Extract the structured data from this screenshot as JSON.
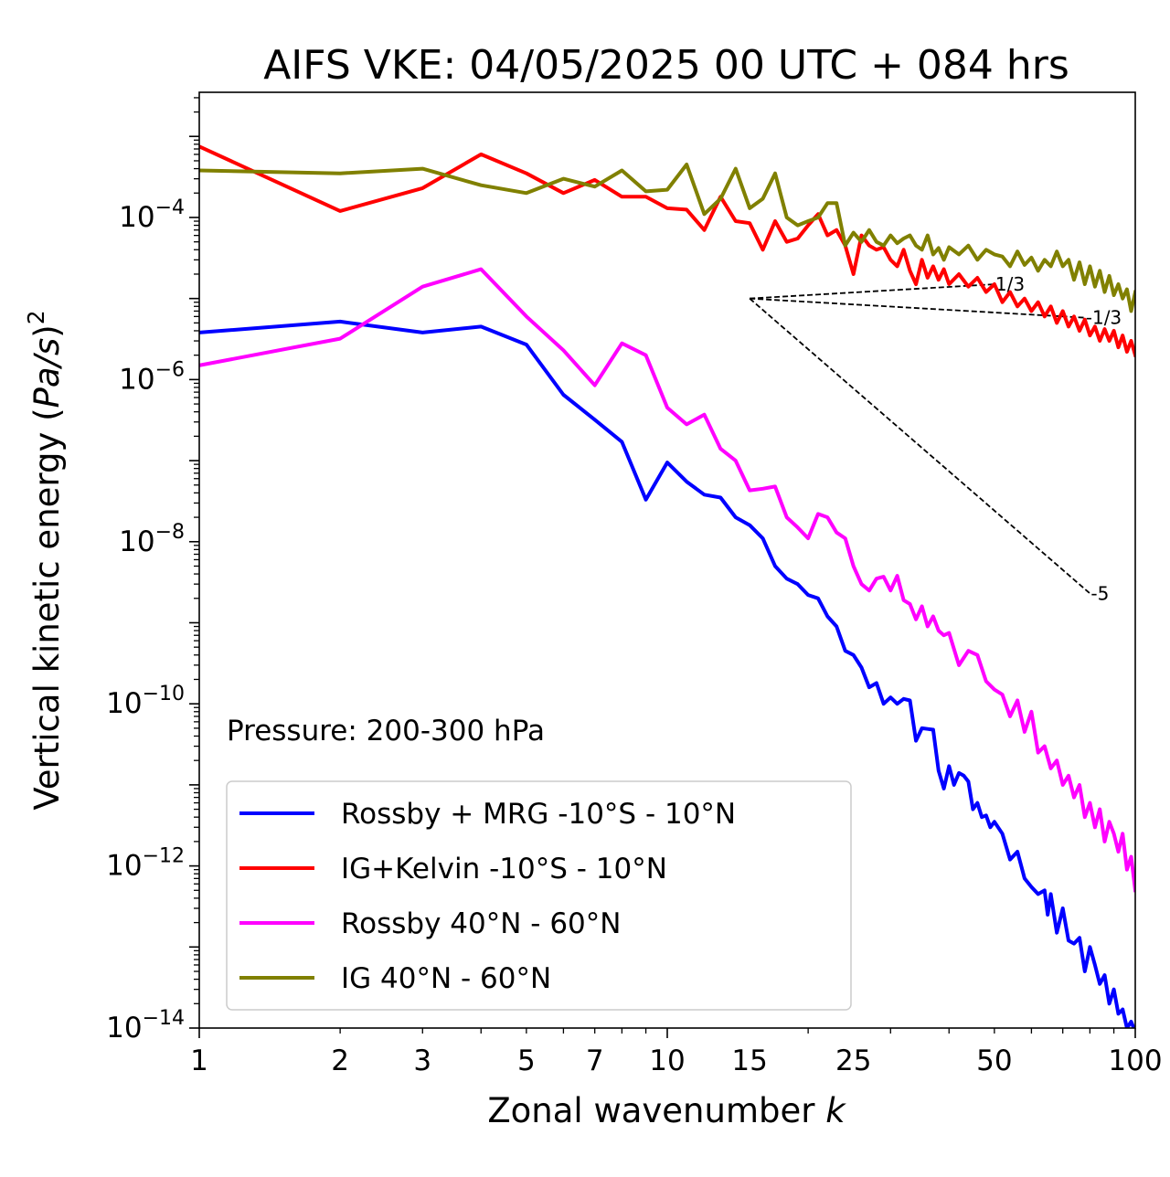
{
  "chart_data": {
    "type": "line",
    "title": "AIFS VKE: 04/05/2025 00 UTC + 084 hrs",
    "xlabel": "Zonal wavenumber k",
    "ylabel": "Vertical kinetic energy (Pa/s)^2",
    "x_scale": "log",
    "y_scale": "log",
    "xlim": [
      1,
      100
    ],
    "ylim": [
      1e-14,
      0.0035
    ],
    "x_ticks": [
      1,
      2,
      3,
      5,
      7,
      10,
      15,
      25,
      50,
      100
    ],
    "x_tick_labels": [
      "1",
      "2",
      "3",
      "5",
      "7",
      "10",
      "15",
      "25",
      "50",
      "100"
    ],
    "y_ticks": [
      {
        "value": 0.0001,
        "base": "10",
        "exp": "−4"
      },
      {
        "value": 1e-06,
        "base": "10",
        "exp": "−6"
      },
      {
        "value": 1e-08,
        "base": "10",
        "exp": "−8"
      },
      {
        "value": 1e-10,
        "base": "10",
        "exp": "−10"
      },
      {
        "value": 1e-12,
        "base": "10",
        "exp": "−12"
      },
      {
        "value": 1e-14,
        "base": "10",
        "exp": "−14"
      }
    ],
    "grid": false,
    "annotation": "Pressure: 200-300 hPa",
    "legend_position": "lower-left",
    "series": [
      {
        "name": "Rossby + MRG -10°S - 10°N",
        "color": "#0000ff",
        "points": [
          [
            1,
            3.8e-06
          ],
          [
            2,
            5.2e-06
          ],
          [
            3,
            3.8e-06
          ],
          [
            4,
            4.5e-06
          ],
          [
            5,
            2.7e-06
          ],
          [
            6,
            6.5e-07
          ],
          [
            7,
            3.2e-07
          ],
          [
            8,
            1.7e-07
          ],
          [
            9,
            3.3e-08
          ],
          [
            10,
            9.5e-08
          ],
          [
            11,
            5.5e-08
          ],
          [
            12,
            3.8e-08
          ],
          [
            13,
            3.5e-08
          ],
          [
            14,
            2e-08
          ],
          [
            15,
            1.6e-08
          ],
          [
            16,
            1.1e-08
          ],
          [
            17,
            5e-09
          ],
          [
            18,
            3.5e-09
          ],
          [
            19,
            3e-09
          ],
          [
            20,
            2.2e-09
          ],
          [
            21,
            2e-09
          ],
          [
            22,
            1.2e-09
          ],
          [
            23,
            9e-10
          ],
          [
            24,
            4.5e-10
          ],
          [
            25,
            4e-10
          ],
          [
            26,
            2.8e-10
          ],
          [
            27,
            1.6e-10
          ],
          [
            28,
            1.8e-10
          ],
          [
            29,
            1e-10
          ],
          [
            30,
            1.2e-10
          ],
          [
            31,
            1e-10
          ],
          [
            32,
            1.15e-10
          ],
          [
            33,
            1.1e-10
          ],
          [
            34,
            3.5e-11
          ],
          [
            35,
            5e-11
          ],
          [
            36,
            4.9e-11
          ],
          [
            37,
            4.8e-11
          ],
          [
            38,
            1.5e-11
          ],
          [
            39,
            9e-12
          ],
          [
            40,
            1.7e-11
          ],
          [
            41,
            1e-11
          ],
          [
            42,
            1.4e-11
          ],
          [
            43,
            1.3e-11
          ],
          [
            44,
            1.1e-11
          ],
          [
            45,
            5e-12
          ],
          [
            46,
            6e-12
          ],
          [
            47,
            4e-12
          ],
          [
            48,
            4.2e-12
          ],
          [
            49,
            3e-12
          ],
          [
            50,
            3.5e-12
          ],
          [
            52,
            2.5e-12
          ],
          [
            54,
            1.2e-12
          ],
          [
            56,
            1.5e-12
          ],
          [
            58,
            7e-13
          ],
          [
            60,
            5.5e-13
          ],
          [
            62,
            4.5e-13
          ],
          [
            64,
            5e-13
          ],
          [
            65,
            2.5e-13
          ],
          [
            66,
            4.5e-13
          ],
          [
            68,
            1.5e-13
          ],
          [
            70,
            3e-13
          ],
          [
            72,
            1.2e-13
          ],
          [
            74,
            1.1e-13
          ],
          [
            76,
            1.3e-13
          ],
          [
            78,
            5e-14
          ],
          [
            80,
            1e-13
          ],
          [
            82,
            6e-14
          ],
          [
            84,
            3.5e-14
          ],
          [
            86,
            4.5e-14
          ],
          [
            88,
            2e-14
          ],
          [
            90,
            3e-14
          ],
          [
            92,
            1.5e-14
          ],
          [
            94,
            1.7e-14
          ],
          [
            96,
            1e-14
          ],
          [
            98,
            1.2e-14
          ],
          [
            100,
            9e-15
          ]
        ]
      },
      {
        "name": "IG+Kelvin -10°S - 10°N",
        "color": "#ff0000",
        "points": [
          [
            1,
            0.00075
          ],
          [
            2,
            0.00012
          ],
          [
            3,
            0.00023
          ],
          [
            4,
            0.0006
          ],
          [
            5,
            0.00035
          ],
          [
            6,
            0.0002
          ],
          [
            7,
            0.00029
          ],
          [
            8,
            0.00018
          ],
          [
            9,
            0.00018
          ],
          [
            10,
            0.00013
          ],
          [
            11,
            0.000125
          ],
          [
            12,
            7e-05
          ],
          [
            13,
            0.00018
          ],
          [
            14,
            9e-05
          ],
          [
            15,
            8.5e-05
          ],
          [
            16,
            4e-05
          ],
          [
            17,
            9e-05
          ],
          [
            18,
            5e-05
          ],
          [
            19,
            5.5e-05
          ],
          [
            20,
            8e-05
          ],
          [
            21,
            0.00011
          ],
          [
            22,
            6e-05
          ],
          [
            23,
            7e-05
          ],
          [
            24,
            4.5e-05
          ],
          [
            25,
            2e-05
          ],
          [
            26,
            6e-05
          ],
          [
            27,
            4.5e-05
          ],
          [
            28,
            4e-05
          ],
          [
            29,
            4.3e-05
          ],
          [
            30,
            3e-05
          ],
          [
            31,
            2.5e-05
          ],
          [
            32,
            4e-05
          ],
          [
            33,
            2.2e-05
          ],
          [
            34,
            1.5e-05
          ],
          [
            35,
            3e-05
          ],
          [
            36,
            1.8e-05
          ],
          [
            37,
            2.5e-05
          ],
          [
            38,
            1.7e-05
          ],
          [
            39,
            2.3e-05
          ],
          [
            40,
            1.5e-05
          ],
          [
            42,
            2e-05
          ],
          [
            44,
            1.4e-05
          ],
          [
            46,
            1.8e-05
          ],
          [
            48,
            1.2e-05
          ],
          [
            50,
            1.5e-05
          ],
          [
            52,
            9e-06
          ],
          [
            54,
            1.2e-05
          ],
          [
            56,
            8e-06
          ],
          [
            58,
            1e-05
          ],
          [
            60,
            7e-06
          ],
          [
            62,
            9e-06
          ],
          [
            64,
            6e-06
          ],
          [
            66,
            8e-06
          ],
          [
            68,
            5e-06
          ],
          [
            70,
            7e-06
          ],
          [
            72,
            4.5e-06
          ],
          [
            74,
            6e-06
          ],
          [
            76,
            4e-06
          ],
          [
            78,
            5.5e-06
          ],
          [
            80,
            3.5e-06
          ],
          [
            82,
            4.5e-06
          ],
          [
            84,
            3e-06
          ],
          [
            86,
            4.2e-06
          ],
          [
            88,
            3e-06
          ],
          [
            90,
            4e-06
          ],
          [
            92,
            2.5e-06
          ],
          [
            94,
            3.5e-06
          ],
          [
            96,
            2.2e-06
          ],
          [
            98,
            3e-06
          ],
          [
            100,
            2e-06
          ]
        ]
      },
      {
        "name": "Rossby 40°N - 60°N",
        "color": "#ff00ff",
        "points": [
          [
            1,
            1.5e-06
          ],
          [
            2,
            3.2e-06
          ],
          [
            3,
            1.4e-05
          ],
          [
            4,
            2.3e-05
          ],
          [
            5,
            6e-06
          ],
          [
            6,
            2.3e-06
          ],
          [
            7,
            8.5e-07
          ],
          [
            8,
            2.8e-06
          ],
          [
            9,
            2e-06
          ],
          [
            10,
            4.5e-07
          ],
          [
            11,
            2.8e-07
          ],
          [
            12,
            3.7e-07
          ],
          [
            13,
            1.4e-07
          ],
          [
            14,
            1e-07
          ],
          [
            15,
            4.3e-08
          ],
          [
            16,
            4.5e-08
          ],
          [
            17,
            4.8e-08
          ],
          [
            18,
            2e-08
          ],
          [
            19,
            1.5e-08
          ],
          [
            20,
            1.1e-08
          ],
          [
            21,
            2.2e-08
          ],
          [
            22,
            2e-08
          ],
          [
            23,
            1.3e-08
          ],
          [
            24,
            1.1e-08
          ],
          [
            25,
            5e-09
          ],
          [
            26,
            3e-09
          ],
          [
            27,
            2.5e-09
          ],
          [
            28,
            3.5e-09
          ],
          [
            29,
            3.7e-09
          ],
          [
            30,
            2.5e-09
          ],
          [
            31,
            3.8e-09
          ],
          [
            32,
            1.9e-09
          ],
          [
            33,
            1.7e-09
          ],
          [
            34,
            1.1e-09
          ],
          [
            35,
            1.6e-09
          ],
          [
            36,
            9e-10
          ],
          [
            37,
            1.2e-09
          ],
          [
            38,
            8e-10
          ],
          [
            39,
            7e-10
          ],
          [
            40,
            7.5e-10
          ],
          [
            42,
            3e-10
          ],
          [
            44,
            4.5e-10
          ],
          [
            46,
            4e-10
          ],
          [
            48,
            1.9e-10
          ],
          [
            50,
            1.5e-10
          ],
          [
            52,
            1.3e-10
          ],
          [
            54,
            7e-11
          ],
          [
            56,
            1.1e-10
          ],
          [
            58,
            4.5e-11
          ],
          [
            60,
            8e-11
          ],
          [
            62,
            2.5e-11
          ],
          [
            64,
            3e-11
          ],
          [
            66,
            1.6e-11
          ],
          [
            68,
            2e-11
          ],
          [
            70,
            1e-11
          ],
          [
            72,
            1.3e-11
          ],
          [
            74,
            7e-12
          ],
          [
            76,
            1e-11
          ],
          [
            78,
            4e-12
          ],
          [
            80,
            6e-12
          ],
          [
            82,
            3e-12
          ],
          [
            84,
            5e-12
          ],
          [
            86,
            2e-12
          ],
          [
            88,
            3.5e-12
          ],
          [
            90,
            2.5e-12
          ],
          [
            92,
            1.5e-12
          ],
          [
            94,
            2.5e-12
          ],
          [
            96,
            9e-13
          ],
          [
            98,
            1.3e-12
          ],
          [
            100,
            5e-13
          ]
        ]
      },
      {
        "name": "IG 40°N - 60°N",
        "color": "#808000",
        "points": [
          [
            1,
            0.00038
          ],
          [
            2,
            0.00035
          ],
          [
            3,
            0.0004
          ],
          [
            4,
            0.00025
          ],
          [
            5,
            0.0002
          ],
          [
            6,
            0.0003
          ],
          [
            7,
            0.00024
          ],
          [
            8,
            0.00038
          ],
          [
            9,
            0.00021
          ],
          [
            10,
            0.00022
          ],
          [
            11,
            0.00045
          ],
          [
            12,
            0.00011
          ],
          [
            13,
            0.00017
          ],
          [
            14,
            0.0004
          ],
          [
            15,
            0.00013
          ],
          [
            16,
            0.00017
          ],
          [
            17,
            0.00035
          ],
          [
            18,
            0.0001
          ],
          [
            19,
            8e-05
          ],
          [
            20,
            9e-05
          ],
          [
            21,
            0.0001
          ],
          [
            22,
            0.00015
          ],
          [
            23,
            0.00015
          ],
          [
            24,
            4.5e-05
          ],
          [
            25,
            6.5e-05
          ],
          [
            26,
            5e-05
          ],
          [
            27,
            7e-05
          ],
          [
            28,
            5e-05
          ],
          [
            29,
            4.5e-05
          ],
          [
            30,
            6e-05
          ],
          [
            31,
            4.8e-05
          ],
          [
            32,
            5.5e-05
          ],
          [
            33,
            6e-05
          ],
          [
            34,
            4.5e-05
          ],
          [
            35,
            4e-05
          ],
          [
            36,
            6e-05
          ],
          [
            37,
            3.5e-05
          ],
          [
            38,
            4.2e-05
          ],
          [
            39,
            3e-05
          ],
          [
            40,
            4.3e-05
          ],
          [
            42,
            3.5e-05
          ],
          [
            44,
            4.5e-05
          ],
          [
            46,
            3e-05
          ],
          [
            48,
            4e-05
          ],
          [
            50,
            3.5e-05
          ],
          [
            52,
            3.3e-05
          ],
          [
            54,
            2.5e-05
          ],
          [
            56,
            3.8e-05
          ],
          [
            58,
            2.6e-05
          ],
          [
            60,
            3.2e-05
          ],
          [
            62,
            2.2e-05
          ],
          [
            64,
            3e-05
          ],
          [
            66,
            2.5e-05
          ],
          [
            68,
            3.8e-05
          ],
          [
            70,
            2.5e-05
          ],
          [
            72,
            3e-05
          ],
          [
            74,
            1.7e-05
          ],
          [
            76,
            2.8e-05
          ],
          [
            78,
            1.5e-05
          ],
          [
            80,
            2.5e-05
          ],
          [
            82,
            1.4e-05
          ],
          [
            84,
            2.2e-05
          ],
          [
            86,
            1.2e-05
          ],
          [
            88,
            1.9e-05
          ],
          [
            90,
            1.1e-05
          ],
          [
            92,
            1.5e-05
          ],
          [
            94,
            1e-05
          ],
          [
            96,
            1.3e-05
          ],
          [
            98,
            7e-06
          ],
          [
            100,
            1.2e-05
          ]
        ]
      }
    ],
    "reference_lines": [
      {
        "label": "1/3",
        "points": [
          [
            15,
            1e-05
          ],
          [
            50,
            1.5e-05
          ]
        ]
      },
      {
        "label": "-1/3",
        "points": [
          [
            15,
            1e-05
          ],
          [
            78,
            5.8e-06
          ]
        ]
      },
      {
        "label": "-5",
        "points": [
          [
            15,
            1e-05
          ],
          [
            80,
            2.3e-09
          ]
        ]
      }
    ]
  }
}
